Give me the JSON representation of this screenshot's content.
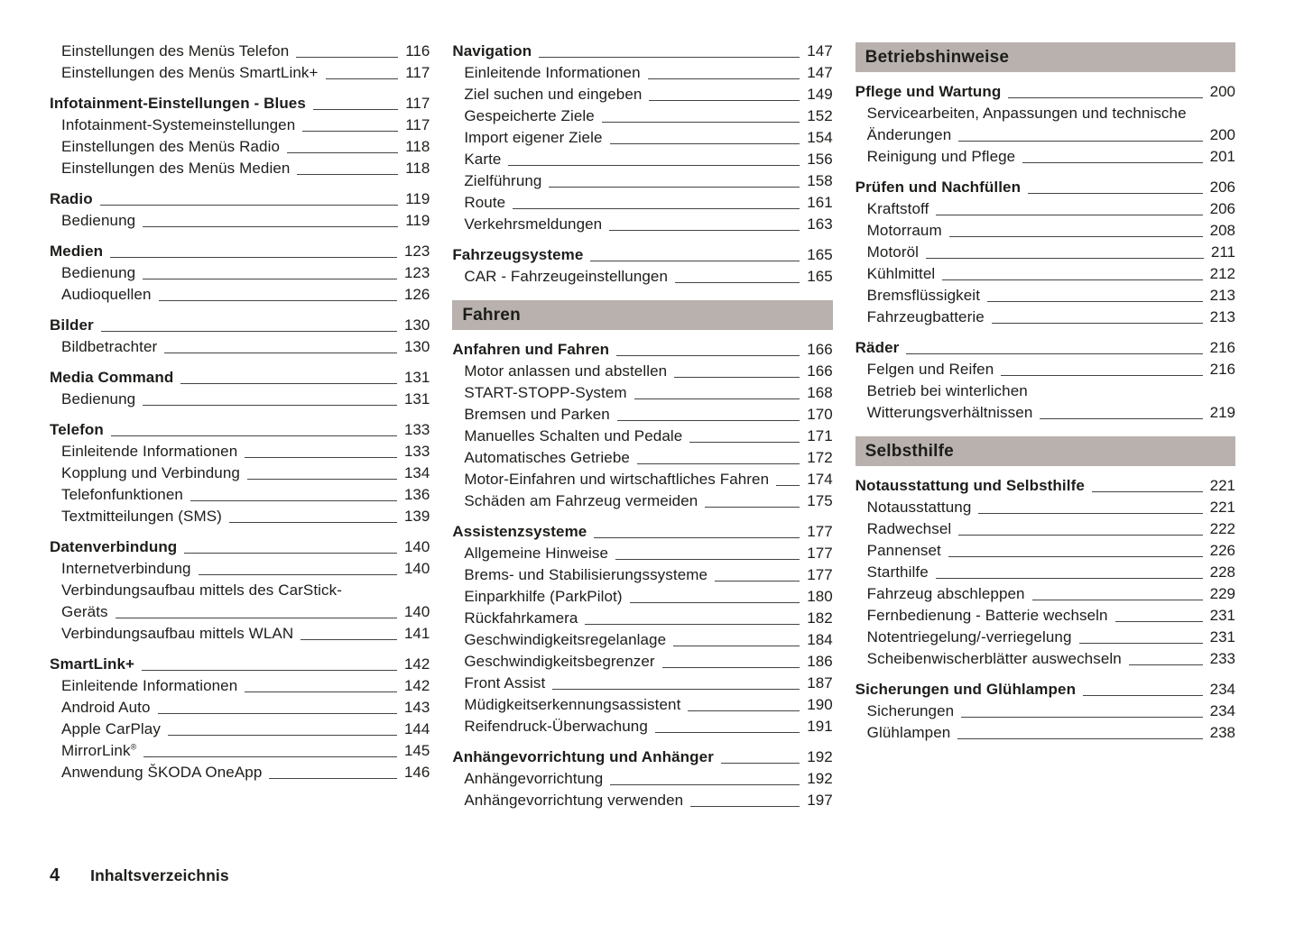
{
  "colors": {
    "band_bg": "#b8b1ad",
    "text": "#1d1d1b",
    "leader": "#444444"
  },
  "footer": {
    "page_number": "4",
    "label": "Inhaltsverzeichnis"
  },
  "columns": [
    {
      "items": [
        {
          "t": "sub",
          "label": "Einstellungen des Menüs Telefon",
          "page": "116"
        },
        {
          "t": "sub",
          "label": "Einstellungen des Menüs SmartLink+",
          "page": "117"
        },
        {
          "t": "main",
          "label": "Infotainment-Einstellungen - Blues",
          "page": "117"
        },
        {
          "t": "sub",
          "label": "Infotainment-Systemeinstellungen",
          "page": "117"
        },
        {
          "t": "sub",
          "label": "Einstellungen des Menüs Radio",
          "page": "118"
        },
        {
          "t": "sub",
          "label": "Einstellungen des Menüs Medien",
          "page": "118"
        },
        {
          "t": "main",
          "label": "Radio",
          "page": "119"
        },
        {
          "t": "sub",
          "label": "Bedienung",
          "page": "119"
        },
        {
          "t": "main",
          "label": "Medien",
          "page": "123"
        },
        {
          "t": "sub",
          "label": "Bedienung",
          "page": "123"
        },
        {
          "t": "sub",
          "label": "Audioquellen",
          "page": "126"
        },
        {
          "t": "main",
          "label": "Bilder",
          "page": "130"
        },
        {
          "t": "sub",
          "label": "Bildbetrachter",
          "page": "130"
        },
        {
          "t": "main",
          "label": "Media Command",
          "page": "131"
        },
        {
          "t": "sub",
          "label": "Bedienung",
          "page": "131"
        },
        {
          "t": "main",
          "label": "Telefon",
          "page": "133"
        },
        {
          "t": "sub",
          "label": "Einleitende Informationen",
          "page": "133"
        },
        {
          "t": "sub",
          "label": "Kopplung und Verbindung",
          "page": "134"
        },
        {
          "t": "sub",
          "label": "Telefonfunktionen",
          "page": "136"
        },
        {
          "t": "sub",
          "label": "Textmitteilungen (SMS)",
          "page": "139"
        },
        {
          "t": "main",
          "label": "Datenverbindung",
          "page": "140"
        },
        {
          "t": "sub",
          "label": "Internetverbindung",
          "page": "140"
        },
        {
          "t": "sub",
          "line1": "Verbindungsaufbau mittels des CarStick-",
          "label": "Geräts",
          "page": "140"
        },
        {
          "t": "sub",
          "label": "Verbindungsaufbau mittels WLAN",
          "page": "141"
        },
        {
          "t": "main",
          "label": "SmartLink+",
          "page": "142"
        },
        {
          "t": "sub",
          "label": "Einleitende Informationen",
          "page": "142"
        },
        {
          "t": "sub",
          "label": "Android Auto",
          "page": "143"
        },
        {
          "t": "sub",
          "label": "Apple CarPlay",
          "page": "144"
        },
        {
          "t": "sub",
          "label": "MirrorLink",
          "sup": "®",
          "page": "145"
        },
        {
          "t": "sub",
          "label": "Anwendung ŠKODA OneApp",
          "page": "146"
        }
      ]
    },
    {
      "items": [
        {
          "t": "main",
          "label": "Navigation",
          "page": "147"
        },
        {
          "t": "sub",
          "label": "Einleitende Informationen",
          "page": "147"
        },
        {
          "t": "sub",
          "label": "Ziel suchen und eingeben",
          "page": "149"
        },
        {
          "t": "sub",
          "label": "Gespeicherte Ziele",
          "page": "152"
        },
        {
          "t": "sub",
          "label": "Import eigener Ziele",
          "page": "154"
        },
        {
          "t": "sub",
          "label": "Karte",
          "page": "156"
        },
        {
          "t": "sub",
          "label": "Zielführung",
          "page": "158"
        },
        {
          "t": "sub",
          "label": "Route",
          "page": "161"
        },
        {
          "t": "sub",
          "label": "Verkehrsmeldungen",
          "page": "163"
        },
        {
          "t": "main",
          "label": "Fahrzeugsysteme",
          "page": "165"
        },
        {
          "t": "sub",
          "label": "CAR - Fahrzeugeinstellungen",
          "page": "165"
        },
        {
          "t": "section",
          "title": "Fahren"
        },
        {
          "t": "main",
          "label": "Anfahren und Fahren",
          "page": "166"
        },
        {
          "t": "sub",
          "label": "Motor anlassen und abstellen",
          "page": "166"
        },
        {
          "t": "sub",
          "label": "START-STOPP-System",
          "page": "168"
        },
        {
          "t": "sub",
          "label": "Bremsen und Parken",
          "page": "170"
        },
        {
          "t": "sub",
          "label": "Manuelles Schalten und Pedale",
          "page": "171"
        },
        {
          "t": "sub",
          "label": "Automatisches Getriebe",
          "page": "172"
        },
        {
          "t": "sub",
          "label": "Motor-Einfahren und wirtschaftliches Fahren",
          "page": "174"
        },
        {
          "t": "sub",
          "label": "Schäden am Fahrzeug vermeiden",
          "page": "175"
        },
        {
          "t": "main",
          "label": "Assistenzsysteme",
          "page": "177"
        },
        {
          "t": "sub",
          "label": "Allgemeine Hinweise",
          "page": "177"
        },
        {
          "t": "sub",
          "label": "Brems- und Stabilisierungssysteme",
          "page": "177"
        },
        {
          "t": "sub",
          "label": "Einparkhilfe (ParkPilot)",
          "page": "180"
        },
        {
          "t": "sub",
          "label": "Rückfahrkamera",
          "page": "182"
        },
        {
          "t": "sub",
          "label": "Geschwindigkeitsregelanlage",
          "page": "184"
        },
        {
          "t": "sub",
          "label": "Geschwindigkeitsbegrenzer",
          "page": "186"
        },
        {
          "t": "sub",
          "label": "Front Assist",
          "page": "187"
        },
        {
          "t": "sub",
          "label": "Müdigkeitserkennungsassistent",
          "page": "190"
        },
        {
          "t": "sub",
          "label": "Reifendruck-Überwachung",
          "page": "191"
        },
        {
          "t": "main",
          "label": "Anhängevorrichtung und Anhänger",
          "page": "192"
        },
        {
          "t": "sub",
          "label": "Anhängevorrichtung",
          "page": "192"
        },
        {
          "t": "sub",
          "label": "Anhängevorrichtung verwenden",
          "page": "197"
        }
      ]
    },
    {
      "items": [
        {
          "t": "section",
          "title": "Betriebshinweise"
        },
        {
          "t": "main",
          "label": "Pflege und Wartung",
          "page": "200"
        },
        {
          "t": "sub",
          "line1": "Servicearbeiten, Anpassungen und technische",
          "label": "Änderungen",
          "page": "200"
        },
        {
          "t": "sub",
          "label": "Reinigung und Pflege",
          "page": "201"
        },
        {
          "t": "main",
          "label": "Prüfen und Nachfüllen",
          "page": "206"
        },
        {
          "t": "sub",
          "label": "Kraftstoff",
          "page": "206"
        },
        {
          "t": "sub",
          "label": "Motorraum",
          "page": "208"
        },
        {
          "t": "sub",
          "label": "Motoröl",
          "page": "211"
        },
        {
          "t": "sub",
          "label": "Kühlmittel",
          "page": "212"
        },
        {
          "t": "sub",
          "label": "Bremsflüssigkeit",
          "page": "213"
        },
        {
          "t": "sub",
          "label": "Fahrzeugbatterie",
          "page": "213"
        },
        {
          "t": "main",
          "label": "Räder",
          "page": "216"
        },
        {
          "t": "sub",
          "label": "Felgen und Reifen",
          "page": "216"
        },
        {
          "t": "sub",
          "line1": "Betrieb bei winterlichen",
          "label": "Witterungsverhältnissen",
          "page": "219"
        },
        {
          "t": "section",
          "title": "Selbsthilfe"
        },
        {
          "t": "main",
          "label": "Notausstattung und Selbsthilfe",
          "page": "221"
        },
        {
          "t": "sub",
          "label": "Notausstattung",
          "page": "221"
        },
        {
          "t": "sub",
          "label": "Radwechsel",
          "page": "222"
        },
        {
          "t": "sub",
          "label": "Pannenset",
          "page": "226"
        },
        {
          "t": "sub",
          "label": "Starthilfe",
          "page": "228"
        },
        {
          "t": "sub",
          "label": "Fahrzeug abschleppen",
          "page": "229"
        },
        {
          "t": "sub",
          "label": "Fernbedienung - Batterie wechseln",
          "page": "231"
        },
        {
          "t": "sub",
          "label": "Notentriegelung/-verriegelung",
          "page": "231"
        },
        {
          "t": "sub",
          "label": "Scheibenwischerblätter auswechseln",
          "page": "233"
        },
        {
          "t": "main",
          "label": "Sicherungen und Glühlampen",
          "page": "234"
        },
        {
          "t": "sub",
          "label": "Sicherungen",
          "page": "234"
        },
        {
          "t": "sub",
          "label": "Glühlampen",
          "page": "238"
        }
      ]
    }
  ]
}
